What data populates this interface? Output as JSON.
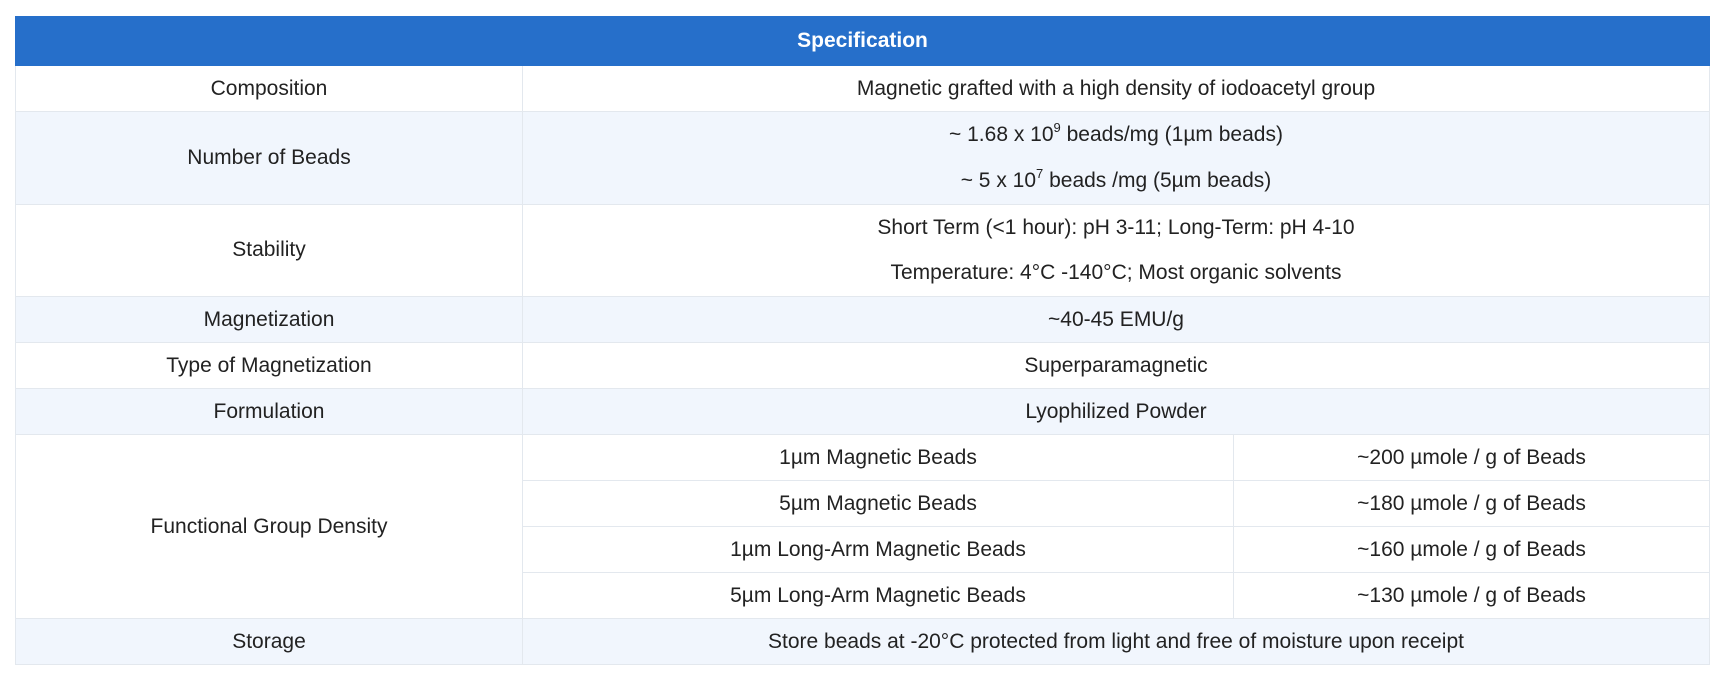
{
  "header": {
    "title": "Specification"
  },
  "table": {
    "rows": [
      {
        "label": "Composition",
        "values": [
          "Magnetic grafted with a high density of iodoacetyl group"
        ]
      },
      {
        "label": "Number of Beads",
        "values": [
          {
            "pre": "~ 1.68 x 10",
            "sup": "9",
            "post": " beads/mg (1µm beads)"
          },
          {
            "pre": "~ 5 x 10",
            "sup": "7",
            "post": " beads /mg (5µm beads)"
          }
        ]
      },
      {
        "label": "Stability",
        "values": [
          "Short Term (<1 hour): pH 3-11; Long-Term: pH 4-10",
          "Temperature: 4°C -140°C; Most organic solvents"
        ]
      },
      {
        "label": "Magnetization",
        "values": [
          "~40-45 EMU/g"
        ]
      },
      {
        "label": "Type of Magnetization",
        "values": [
          "Superparamagnetic"
        ]
      },
      {
        "label": "Formulation",
        "values": [
          "Lyophilized Powder"
        ]
      },
      {
        "label": "Functional Group Density",
        "values": [
          [
            "1µm Magnetic Beads",
            "~200 µmole / g of Beads"
          ],
          [
            "5µm Magnetic Beads",
            "~180 µmole / g of Beads"
          ],
          [
            "1µm Long-Arm Magnetic Beads",
            "~160 µmole / g of Beads"
          ],
          [
            "5µm Long-Arm Magnetic Beads",
            "~130 µmole / g of Beads"
          ]
        ]
      },
      {
        "label": "Storage",
        "values": [
          "Store beads at -20°C protected from light and free of moisture upon receipt"
        ]
      }
    ]
  }
}
